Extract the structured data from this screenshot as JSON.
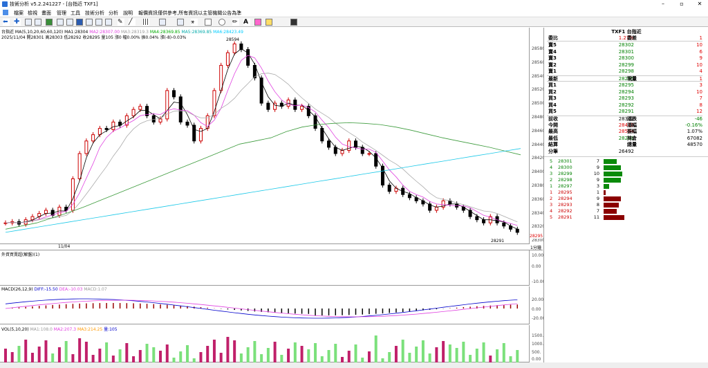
{
  "window": {
    "title": "技術分析 v5.2.241227 - [台指近 TXF1]"
  },
  "menu": [
    "檔案",
    "檢視",
    "畫面",
    "管理",
    "工具",
    "技術分析",
    "分析",
    "說明",
    "報價資訊僅供參考,所有資訊以主管機關公告為準"
  ],
  "main": {
    "legend1": "台指近 MA(5,10,20,60,60,120)",
    "ma1": "MA1:28304",
    "ma2": "MA2:28307.00",
    "ma3": "MA3:28319.3",
    "ma4": "MA4:28369.85",
    "ma5": "MA5:28369.85",
    "ma6": "MA6:28423.49",
    "ohlc": "2025/11/04 開28301 高28303 低28292 收28295 量105 漲0 幅0.00% 振0.04% 漲(-8)-0.03%",
    "high_label": "28594",
    "low_label": "28291",
    "price_ticks": [
      "28580",
      "28560",
      "28540",
      "28520",
      "28500",
      "28480",
      "28460",
      "28440",
      "28420",
      "28400",
      "28380",
      "28360",
      "28340",
      "28320",
      "28300"
    ],
    "last_price": "28295",
    "date_label": "11/04",
    "interval": "1分鐘"
  },
  "foreign": {
    "title": "外資買賣超(解盤)(1)",
    "ticks": [
      "10.00",
      "0.00",
      "-10.00"
    ]
  },
  "macd": {
    "title": "MACD(26,12,9)",
    "diff": "DIFF:-15.50",
    "dea": "DEA:-10.03",
    "osc": "MACD:1.07",
    "ticks": [
      "20.00",
      "0.00",
      "-20.00"
    ]
  },
  "volume": {
    "title": "VOL(5,10,20)",
    "ma1": "MA1:108.0",
    "ma2": "MA2:207.3",
    "ma3": "MA3:214.25",
    "cur": "量:105",
    "ticks": [
      "1500.",
      "1000.",
      "500.",
      "0.00"
    ]
  },
  "quote": {
    "header_symbol": "TXF1",
    "header_name": "台指近",
    "ratio_label": "委比",
    "ratio_value": "1.27%",
    "diff_label": "委差",
    "diff_value": "1",
    "asks": [
      {
        "label": "賣5",
        "price": "28302",
        "qty": "10"
      },
      {
        "label": "賣4",
        "price": "28301",
        "qty": "6"
      },
      {
        "label": "賣3",
        "price": "28300",
        "qty": "9"
      },
      {
        "label": "賣2",
        "price": "28299",
        "qty": "10"
      },
      {
        "label": "賣1",
        "price": "28298",
        "qty": "4"
      }
    ],
    "last": {
      "label": "最新",
      "price": "28295",
      "label2": "現量",
      "value2": "1"
    },
    "bids": [
      {
        "label": "買1",
        "price": "28295",
        "qty": "3"
      },
      {
        "label": "買2",
        "price": "28294",
        "qty": "10"
      },
      {
        "label": "買3",
        "price": "28293",
        "qty": "7"
      },
      {
        "label": "買4",
        "price": "28292",
        "qty": "8"
      },
      {
        "label": "買5",
        "price": "28291",
        "qty": "12"
      }
    ],
    "stats": [
      {
        "l": "前收",
        "v": "28341",
        "l2": "漲跌",
        "v2": "-46"
      },
      {
        "l": "今開",
        "v": "28410",
        "l2": "漲幅",
        "v2": "-0.16%"
      },
      {
        "l": "最高",
        "v": "28594",
        "l2": "振幅",
        "v2": "1.07%"
      },
      {
        "l": "最低",
        "v": "28291",
        "l2": "持倉",
        "v2": "67082"
      },
      {
        "l": "結算",
        "v": "",
        "l2": "總量",
        "v2": "48570"
      },
      {
        "l": "分筆",
        "v": "26492",
        "l2": "",
        "v2": ""
      }
    ],
    "depth_asks": [
      {
        "lvl": "5",
        "price": "28301",
        "qty": "7",
        "frac": 0.6
      },
      {
        "lvl": "4",
        "price": "28300",
        "qty": "9",
        "frac": 0.77
      },
      {
        "lvl": "3",
        "price": "28299",
        "qty": "10",
        "frac": 0.85
      },
      {
        "lvl": "2",
        "price": "28298",
        "qty": "9",
        "frac": 0.77
      },
      {
        "lvl": "1",
        "price": "28297",
        "qty": "3",
        "frac": 0.26
      }
    ],
    "depth_bids": [
      {
        "lvl": "1",
        "price": "28295",
        "qty": "1",
        "frac": 0.09
      },
      {
        "lvl": "2",
        "price": "28294",
        "qty": "9",
        "frac": 0.77
      },
      {
        "lvl": "3",
        "price": "28293",
        "qty": "8",
        "frac": 0.68
      },
      {
        "lvl": "4",
        "price": "28292",
        "qty": "7",
        "frac": 0.6
      },
      {
        "lvl": "5",
        "price": "28291",
        "qty": "11",
        "frac": 0.94
      }
    ]
  },
  "colors": {
    "up": "#ff0000",
    "down": "#008000",
    "accent": "#000080"
  },
  "chart_data": {
    "type": "candlestick",
    "y_range": [
      28285,
      28600
    ],
    "close_series": [
      28310,
      28312,
      28308,
      28315,
      28320,
      28325,
      28330,
      28322,
      28335,
      28330,
      28380,
      28420,
      28440,
      28450,
      28460,
      28458,
      28470,
      28465,
      28480,
      28490,
      28495,
      28480,
      28470,
      28475,
      28520,
      28510,
      28470,
      28465,
      28440,
      28460,
      28480,
      28520,
      28560,
      28580,
      28594,
      28585,
      28560,
      28540,
      28500,
      28490,
      28500,
      28495,
      28505,
      28490,
      28495,
      28480,
      28460,
      28440,
      28430,
      28420,
      28425,
      28440,
      28430,
      28420,
      28420,
      28400,
      28370,
      28360,
      28365,
      28355,
      28350,
      28345,
      28340,
      28330,
      28335,
      28345,
      28340,
      28335,
      28330,
      28320,
      28315,
      28310,
      28320,
      28310,
      28305,
      28300,
      28295
    ],
    "ma_long": [
      28300,
      28305,
      28310,
      28318,
      28326,
      28335,
      28345,
      28355,
      28365,
      28375,
      28385,
      28395,
      28405,
      28415,
      28425,
      28435,
      28440,
      28445,
      28455,
      28462,
      28466,
      28468,
      28469,
      28468,
      28466,
      28462,
      28457,
      28451,
      28445,
      28440,
      28435,
      28430,
      28424,
      28418
    ]
  }
}
